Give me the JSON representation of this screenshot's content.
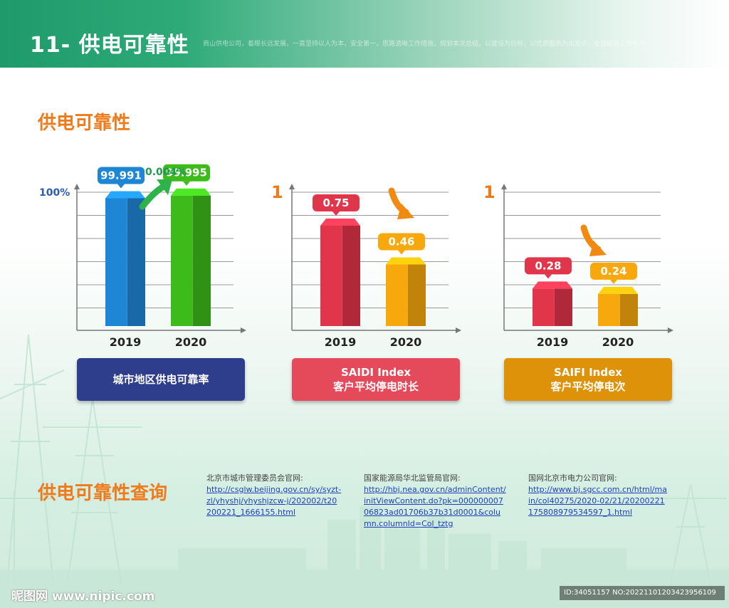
{
  "header": {
    "title": "11- 供电可靠性",
    "subtitle": "商山供电公司，着眼长远发展，一直坚持以人为本，安全第一，思路清晰工作措施，规划本次总结，以建设为目标，以优质服务为出发点，全面提升工作水平。"
  },
  "section1_title": "供电可靠性",
  "section2_title": "供电可靠性查询",
  "chart_data": [
    {
      "type": "bar",
      "top_label": "100%",
      "categories": [
        "2019",
        "2020"
      ],
      "values": [
        99.991,
        99.995
      ],
      "value_labels": [
        "99.991",
        "99.995"
      ],
      "annotation": "0.004%",
      "trend": "up",
      "caption_lines": [
        "城市地区供电可靠率"
      ],
      "colors": [
        "#1f86d6",
        "#3dbb1a"
      ],
      "caption_color": "#2e3e8c"
    },
    {
      "type": "bar",
      "top_label": "1",
      "categories": [
        "2019",
        "2020"
      ],
      "values": [
        0.75,
        0.46
      ],
      "value_labels": [
        "0.75",
        "0.46"
      ],
      "trend": "down",
      "caption_lines": [
        "SAIDI Index",
        "客户平均停电时长"
      ],
      "colors": [
        "#e0354a",
        "#f7a80c"
      ],
      "caption_color": "#e44a5a"
    },
    {
      "type": "bar",
      "top_label": "1",
      "categories": [
        "2019",
        "2020"
      ],
      "values": [
        0.28,
        0.24
      ],
      "value_labels": [
        "0.28",
        "0.24"
      ],
      "trend": "down",
      "caption_lines": [
        "SAIFI Index",
        "客户平均停电次"
      ],
      "colors": [
        "#e0354a",
        "#f7a80c"
      ],
      "caption_color": "#dd9209"
    }
  ],
  "sources": [
    {
      "label": "北京市城市管理委员会官网:",
      "url": "http://csglw.beijing.gov.cn/sy/syzt-zl/yhyshj/yhyshjzcw-j/202002/t20200221_1666155.html"
    },
    {
      "label": "国家能源局华北监管局官网:",
      "url": "http://hbj.nea.gov.cn/adminContent/initViewContent.do?pk=00000000706823ad01706b37b31d0001&column.columnId=Col_tztg"
    },
    {
      "label": "国网北京市电力公司官网:",
      "url": "http://www.bj.sgcc.com.cn/html/main/col40275/2020-02/21/20200221175808979534597_1.html"
    }
  ],
  "footer": {
    "watermark": "昵图网 www.nipic.com",
    "id_text": "ID:34051157 NO:20221101203423956109"
  }
}
